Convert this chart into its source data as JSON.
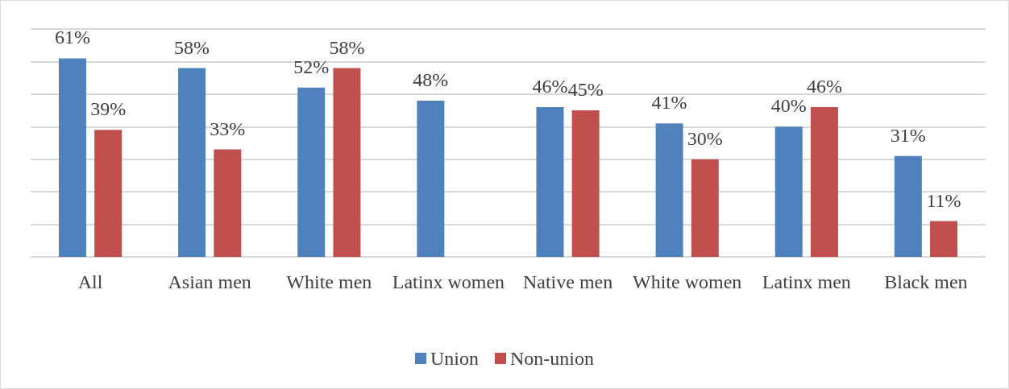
{
  "chart_data": {
    "type": "bar",
    "categories": [
      "All",
      "Asian men",
      "White men",
      "Latinx women",
      "Native men",
      "White women",
      "Latinx men",
      "Black men"
    ],
    "series": [
      {
        "name": "Union",
        "color": "#4f81bd",
        "values": [
          61,
          58,
          52,
          48,
          46,
          41,
          40,
          31
        ],
        "value_labels": [
          "61%",
          "58%",
          "52%",
          "48%",
          "46%",
          "41%",
          "40%",
          "31%"
        ]
      },
      {
        "name": "Non-union",
        "color": "#c0504d",
        "values": [
          39,
          33,
          58,
          null,
          45,
          30,
          46,
          11
        ],
        "value_labels": [
          "39%",
          "33%",
          "58%",
          null,
          "45%",
          "30%",
          "46%",
          "11%"
        ]
      }
    ],
    "ylim": [
      0,
      70
    ],
    "yticks": [
      {
        "value": 0,
        "label": null
      },
      {
        "value": 10,
        "label": null
      },
      {
        "value": 20,
        "label": null
      },
      {
        "value": 30,
        "label": null
      },
      {
        "value": 40,
        "label": null
      },
      {
        "value": 50,
        "label": null
      },
      {
        "value": 60,
        "label": null
      },
      {
        "value": 70,
        "label": null
      }
    ],
    "tick_labels": "x",
    "grid": "y",
    "legend": "bottom"
  }
}
